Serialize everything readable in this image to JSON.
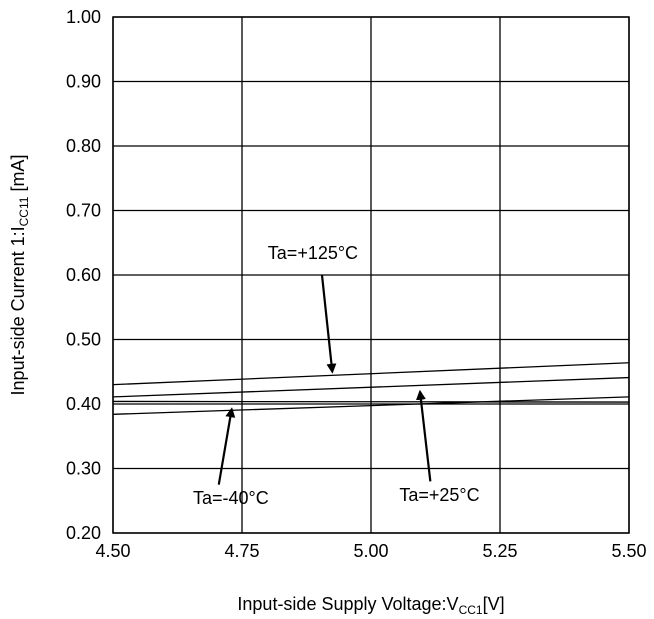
{
  "chart_data": {
    "type": "line",
    "title": "",
    "xlabel": {
      "main": "Input-side Supply Voltage:V",
      "sub": "CC1",
      "suffix": "[V]"
    },
    "ylabel": {
      "main": "Input-side Current 1:I",
      "sub": "CC11",
      "suffix": " [mA]"
    },
    "xlim": [
      4.5,
      5.5
    ],
    "ylim": [
      0.2,
      1.0
    ],
    "x_ticks": [
      4.5,
      4.75,
      5.0,
      5.25,
      5.5
    ],
    "x_tick_labels": [
      "4.50",
      "4.75",
      "5.00",
      "5.25",
      "5.50"
    ],
    "y_ticks": [
      0.2,
      0.3,
      0.4,
      0.5,
      0.6,
      0.7,
      0.8,
      0.9,
      1.0
    ],
    "y_tick_labels": [
      "0.20",
      "0.30",
      "0.40",
      "0.50",
      "0.60",
      "0.70",
      "0.80",
      "0.90",
      "1.00"
    ],
    "grid": true,
    "series": [
      {
        "x": [
          4.5,
          5.5
        ],
        "y": [
          0.43,
          0.464
        ]
      },
      {
        "x": [
          4.5,
          5.5
        ],
        "y": [
          0.411,
          0.441
        ]
      },
      {
        "x": [
          4.5,
          5.5
        ],
        "y": [
          0.404,
          0.403
        ]
      },
      {
        "x": [
          4.5,
          5.5
        ],
        "y": [
          0.384,
          0.411
        ]
      }
    ],
    "annotations": [
      {
        "text": "Ta=+125°C",
        "text_xy": [
          4.8,
          0.625
        ],
        "tail": [
          4.905,
          0.6
        ],
        "head": [
          4.925,
          0.45
        ]
      },
      {
        "text": "Ta=-40°C",
        "text_xy": [
          4.655,
          0.245
        ],
        "tail": [
          4.705,
          0.275
        ],
        "head": [
          4.73,
          0.392
        ]
      },
      {
        "text": "Ta=+25°C",
        "text_xy": [
          5.055,
          0.25
        ],
        "tail": [
          5.115,
          0.28
        ],
        "head": [
          5.095,
          0.419
        ]
      }
    ]
  }
}
